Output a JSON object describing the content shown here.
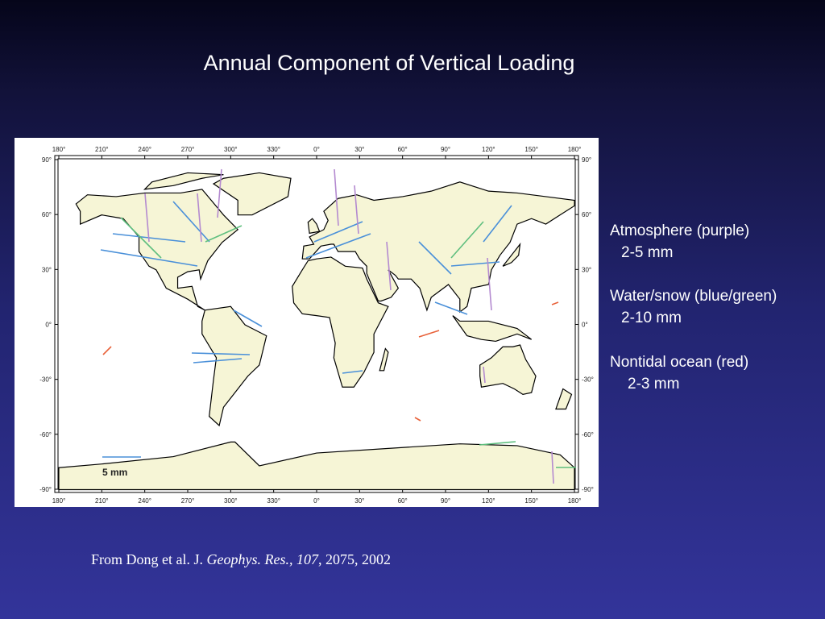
{
  "title": "Annual Component of  Vertical Loading",
  "map": {
    "lon_labels": [
      "180°",
      "210°",
      "240°",
      "270°",
      "300°",
      "330°",
      "0°",
      "30°",
      "60°",
      "90°",
      "120°",
      "150°",
      "180°"
    ],
    "lat_labels": [
      "90°",
      "60°",
      "30°",
      "0°",
      "-30°",
      "-60°",
      "-90°"
    ],
    "scale_label": "5 mm"
  },
  "legend": [
    {
      "name": "Atmosphere (purple)",
      "range": "2-5 mm"
    },
    {
      "name": "Water/snow (blue/green)",
      "range": "2-10 mm"
    },
    {
      "name": "Nontidal ocean (red)",
      "range": "2-3 mm"
    }
  ],
  "citation": {
    "prefix": "From Dong et al. J. ",
    "journal": "Geophys. Res., 107",
    "suffix": ", 2075, 2002"
  }
}
